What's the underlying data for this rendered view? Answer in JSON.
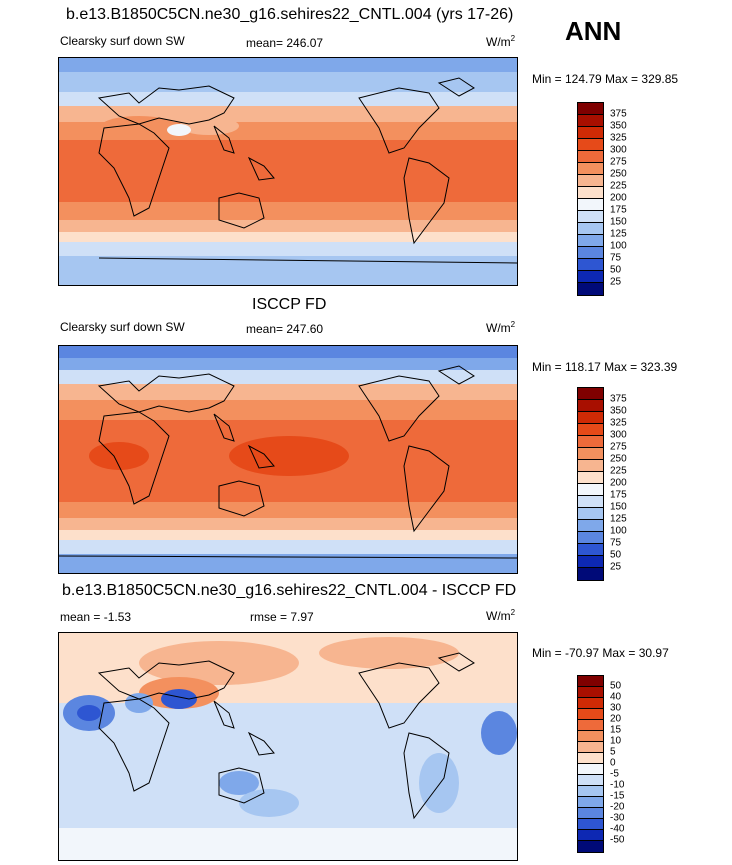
{
  "season": "ANN",
  "panels": [
    {
      "title": "b.e13.B1850C5CN.ne30_g16.sehires22_CNTL.004 (yrs 17-26)",
      "left_label": "Clearsky surf down SW",
      "center_label": "mean= 246.07",
      "units": "W/m",
      "units_sup": "2",
      "minmax": "Min = 124.79 Max = 329.85",
      "colorbar_ticks": [
        "375",
        "350",
        "325",
        "300",
        "275",
        "250",
        "225",
        "200",
        "175",
        "150",
        "125",
        "100",
        "75",
        "50",
        "25"
      ]
    },
    {
      "title": "ISCCP FD",
      "left_label": "Clearsky surf down SW",
      "center_label": "mean= 247.60",
      "units": "W/m",
      "units_sup": "2",
      "minmax": "Min = 118.17 Max = 323.39",
      "colorbar_ticks": [
        "375",
        "350",
        "325",
        "300",
        "275",
        "250",
        "225",
        "200",
        "175",
        "150",
        "125",
        "100",
        "75",
        "50",
        "25"
      ]
    },
    {
      "title": "b.e13.B1850C5CN.ne30_g16.sehires22_CNTL.004 - ISCCP FD",
      "left_label": "mean =  -1.53",
      "center_label": "rmse =   7.97",
      "units": "W/m",
      "units_sup": "2",
      "minmax": "Min = -70.97 Max =  30.97",
      "colorbar_ticks": [
        "50",
        "40",
        "30",
        "20",
        "15",
        "10",
        "5",
        "0",
        "-5",
        "-10",
        "-15",
        "-20",
        "-30",
        "-40",
        "-50"
      ]
    }
  ],
  "colors": {
    "scale_hi_to_lo": [
      "#7f0000",
      "#a80f00",
      "#cf2a05",
      "#e64a19",
      "#ee6a3a",
      "#f3905e",
      "#f7b590",
      "#fde0cb",
      "#f2f6fb",
      "#cfe0f7",
      "#a6c6f1",
      "#7fa8ea",
      "#5b86e0",
      "#2e56d2",
      "#0d28b3",
      "#000a78"
    ],
    "diff_hi_to_lo": [
      "#7f0000",
      "#a80f00",
      "#cf2a05",
      "#e64a19",
      "#ee6a3a",
      "#f3905e",
      "#f7b590",
      "#fde0cb",
      "#f2f6fb",
      "#cfe0f7",
      "#a6c6f1",
      "#7fa8ea",
      "#5b86e0",
      "#2e56d2",
      "#0d28b3",
      "#000a78"
    ]
  }
}
